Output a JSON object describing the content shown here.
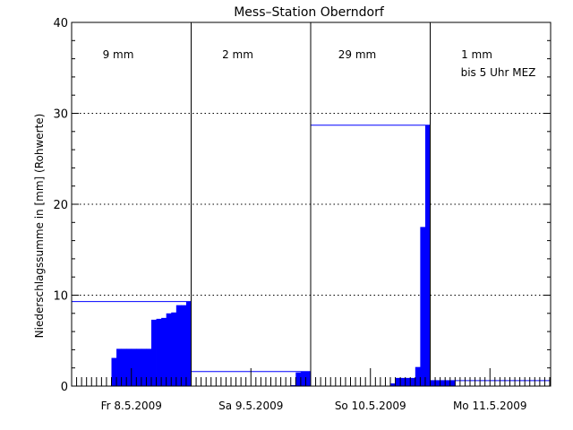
{
  "chart_data": {
    "type": "bar",
    "title": "Mess–Station Oberndorf",
    "ylabel": "Niederschlagssumme in [mm] (Rohwerte)",
    "ylim": [
      0,
      40
    ],
    "yticks": [
      0,
      10,
      20,
      30,
      40
    ],
    "grid": "horizontal dotted",
    "bar_color": "#0000ff",
    "days": [
      {
        "label": "Fr 8.5.2009",
        "total_text": "9 mm",
        "total": 9.3
      },
      {
        "label": "Sa 9.5.2009",
        "total_text": "2 mm",
        "total": 1.6
      },
      {
        "label": "So 10.5.2009",
        "total_text": "29 mm",
        "total": 28.7
      },
      {
        "label": "Mo 11.5.2009",
        "total_text": "1 mm",
        "note": "bis 5 Uhr MEZ",
        "total": 0.6
      }
    ],
    "hours_per_day": 24,
    "series": [
      {
        "values": [
          0,
          0,
          0,
          0,
          0,
          0,
          0,
          0,
          3.1,
          4.1,
          4.1,
          4.1,
          4.1,
          4.1,
          4.1,
          4.1,
          7.3,
          7.4,
          7.5,
          8.0,
          8.1,
          8.9,
          8.9,
          9.3,
          0,
          0,
          0,
          0,
          0,
          0,
          0,
          0,
          0,
          0,
          0,
          0,
          0,
          0,
          0,
          0,
          0,
          0,
          0,
          0,
          0.1,
          1.5,
          1.6,
          1.6,
          0,
          0,
          0,
          0,
          0,
          0,
          0,
          0,
          0,
          0,
          0,
          0,
          0,
          0,
          0,
          0,
          0.3,
          0.9,
          0.9,
          0.9,
          0.9,
          2.1,
          17.5,
          28.7,
          0.6,
          0.6,
          0.6,
          0.6,
          0.6
        ]
      }
    ]
  }
}
